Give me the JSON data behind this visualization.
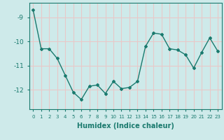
{
  "x": [
    0,
    1,
    2,
    3,
    4,
    5,
    6,
    7,
    8,
    9,
    10,
    11,
    12,
    13,
    14,
    15,
    16,
    17,
    18,
    19,
    20,
    21,
    22,
    23
  ],
  "y": [
    -8.7,
    -10.3,
    -10.3,
    -10.7,
    -11.4,
    -12.1,
    -12.4,
    -11.85,
    -11.8,
    -12.15,
    -11.65,
    -11.95,
    -11.9,
    -11.65,
    -10.2,
    -9.65,
    -9.7,
    -10.3,
    -10.35,
    -10.55,
    -11.1,
    -10.45,
    -9.85,
    -10.4
  ],
  "line_color": "#1a7a6e",
  "marker": "D",
  "marker_size": 2.0,
  "line_width": 1.0,
  "bg_color": "#ceeaea",
  "grid_color_h": "#e8c8c8",
  "grid_color_v": "#e8c8c8",
  "tick_label_color": "#1a7a6e",
  "xlabel": "Humidex (Indice chaleur)",
  "xlabel_fontsize": 7,
  "ylim": [
    -12.8,
    -8.4
  ],
  "yticks": [
    -12,
    -11,
    -10,
    -9
  ],
  "xticks": [
    0,
    1,
    2,
    3,
    4,
    5,
    6,
    7,
    8,
    9,
    10,
    11,
    12,
    13,
    14,
    15,
    16,
    17,
    18,
    19,
    20,
    21,
    22,
    23
  ]
}
